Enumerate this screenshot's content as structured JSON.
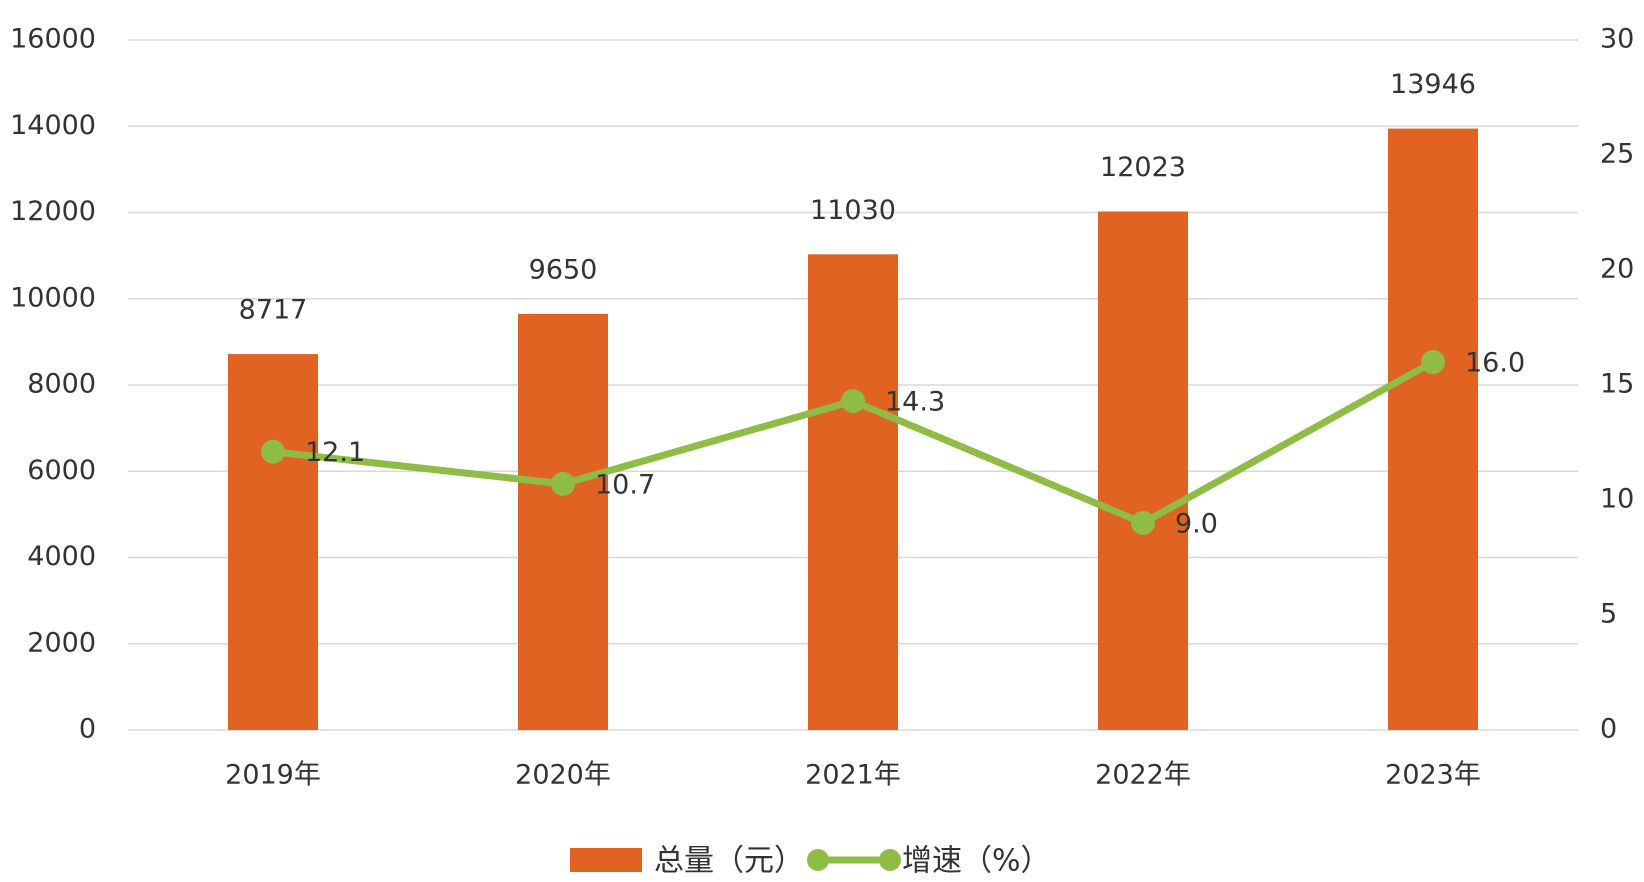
{
  "chart_data": {
    "type": "bar",
    "categories": [
      "2019年",
      "2020年",
      "2021年",
      "2022年",
      "2023年"
    ],
    "series": [
      {
        "name": "总量（元）",
        "type": "bar",
        "color": "#e06322",
        "values": [
          8717,
          9650,
          11030,
          12023,
          13946
        ]
      },
      {
        "name": "增速（%）",
        "type": "line",
        "axis": "y2",
        "color": "#8fbc45",
        "values": [
          12.1,
          10.7,
          14.3,
          9.0,
          16.0
        ],
        "value_labels": [
          "12.1",
          "10.7",
          "14.3",
          "9.0",
          "16.0"
        ]
      }
    ],
    "ylim": [
      0,
      16000
    ],
    "yticks": [
      0,
      2000,
      4000,
      6000,
      8000,
      10000,
      12000,
      14000,
      16000
    ],
    "y2lim": [
      0,
      30
    ],
    "y2ticks": [
      0,
      5,
      10,
      15,
      20,
      25,
      30
    ],
    "grid": true,
    "legend": "bottom"
  }
}
